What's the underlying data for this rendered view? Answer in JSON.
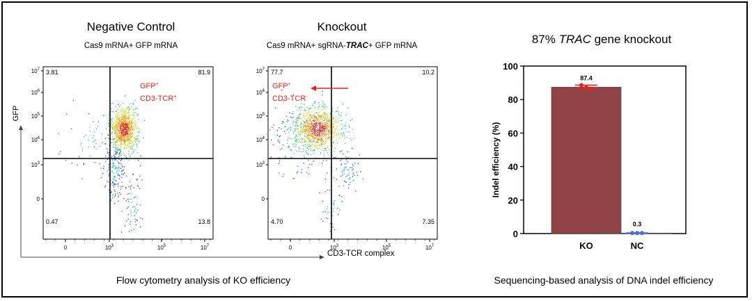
{
  "figure": {
    "flow_caption": "Flow cytometry analysis of KO efficiency",
    "seq_caption": "Sequencing-based analysis of DNA indel efficiency"
  },
  "chart_data": [
    {
      "type": "scatter",
      "panel": "flow-negative-control",
      "title": "Negative Control",
      "subtitle": "Cas9 mRNA+ GFP mRNA",
      "ylabel": "GFP",
      "y_ticks": [
        "10^7",
        "10^6",
        "10^5",
        "10^4",
        "10^3",
        "0"
      ],
      "x_ticks": [
        "0",
        "10^3",
        "10^5",
        "10^7"
      ],
      "quadrants": {
        "top_left": "3.81",
        "top_right": "81.9",
        "bottom_left": "0.47",
        "bottom_right": "13.8"
      },
      "annotation": {
        "line1": "GFP",
        "line1_sup": "+",
        "line2": "CD3-TCR",
        "line2_sup": "+"
      },
      "annotation_color": "#e8211b"
    },
    {
      "type": "scatter",
      "panel": "flow-knockout",
      "title": "Knockout",
      "subtitle": {
        "pre": "Cas9 mRNA+ sgRNA-",
        "gene": "TRAC",
        "post": "+ GFP mRNA"
      },
      "xlabel": "CD3-TCR complex",
      "y_ticks": [
        "10^7",
        "10^6",
        "10^5",
        "10^4",
        "10^3",
        "0"
      ],
      "x_ticks": [
        "0",
        "10^3",
        "10^5",
        "10^7"
      ],
      "quadrants": {
        "top_left": "77.7",
        "top_right": "10.2",
        "bottom_left": "4.70",
        "bottom_right": "7.35"
      },
      "annotation": {
        "line1": "GFP",
        "line1_sup": "+",
        "line2": "CD3-TCR",
        "line2_sup": "-"
      },
      "annotation_color": "#e8211b"
    },
    {
      "type": "bar",
      "panel": "indel-efficiency",
      "title": {
        "pre": "87% ",
        "gene": "TRAC",
        "post": " gene knockout"
      },
      "ylabel": "Indel efficiency (%)",
      "ylim": [
        0,
        100
      ],
      "y_ticks": [
        0,
        20,
        40,
        60,
        80,
        100
      ],
      "categories": [
        "KO",
        "NC"
      ],
      "values": [
        87.4,
        0.3
      ],
      "value_labels": [
        "87.4",
        "0.3"
      ],
      "bar_colors": [
        "#8f4346",
        "#ffffff"
      ],
      "point_colors": [
        "#e8211b",
        "#4f6fd6"
      ],
      "replicates": [
        [
          88.6,
          87.2,
          86.4
        ],
        [
          0.3,
          0.3,
          0.3
        ]
      ],
      "error": [
        1.2,
        0.1
      ]
    }
  ]
}
